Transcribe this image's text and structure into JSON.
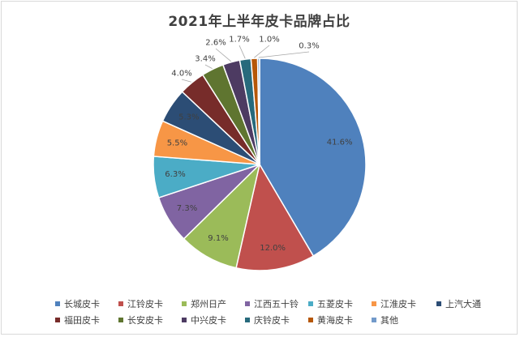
{
  "chart_data": {
    "type": "pie",
    "title": "2021年上半年皮卡品牌占比",
    "legend_position": "bottom",
    "slices": [
      {
        "name": "长城皮卡",
        "value": 41.6,
        "label": "41.6%",
        "color": "#4f81bd"
      },
      {
        "name": "江铃皮卡",
        "value": 12.0,
        "label": "12.0%",
        "color": "#c0504d"
      },
      {
        "name": "郑州日产",
        "value": 9.1,
        "label": "9.1%",
        "color": "#9bbb59"
      },
      {
        "name": "江西五十铃",
        "value": 7.3,
        "label": "7.3%",
        "color": "#8064a2"
      },
      {
        "name": "五菱皮卡",
        "value": 6.3,
        "label": "6.3%",
        "color": "#4bacc6"
      },
      {
        "name": "江淮皮卡",
        "value": 5.5,
        "label": "5.5%",
        "color": "#f79646"
      },
      {
        "name": "上汽大通",
        "value": 5.3,
        "label": "5.3%",
        "color": "#2c4d75"
      },
      {
        "name": "福田皮卡",
        "value": 4.0,
        "label": "4.0%",
        "color": "#772c2a"
      },
      {
        "name": "长安皮卡",
        "value": 3.4,
        "label": "3.4%",
        "color": "#5f7530"
      },
      {
        "name": "中兴皮卡",
        "value": 2.6,
        "label": "2.6%",
        "color": "#4d3b62"
      },
      {
        "name": "庆铃皮卡",
        "value": 1.7,
        "label": "1.7%",
        "color": "#276a7c"
      },
      {
        "name": "黄海皮卡",
        "value": 1.0,
        "label": "1.0%",
        "color": "#b65708"
      },
      {
        "name": "其他",
        "value": 0.3,
        "label": "0.3%",
        "color": "#729aca"
      }
    ]
  }
}
